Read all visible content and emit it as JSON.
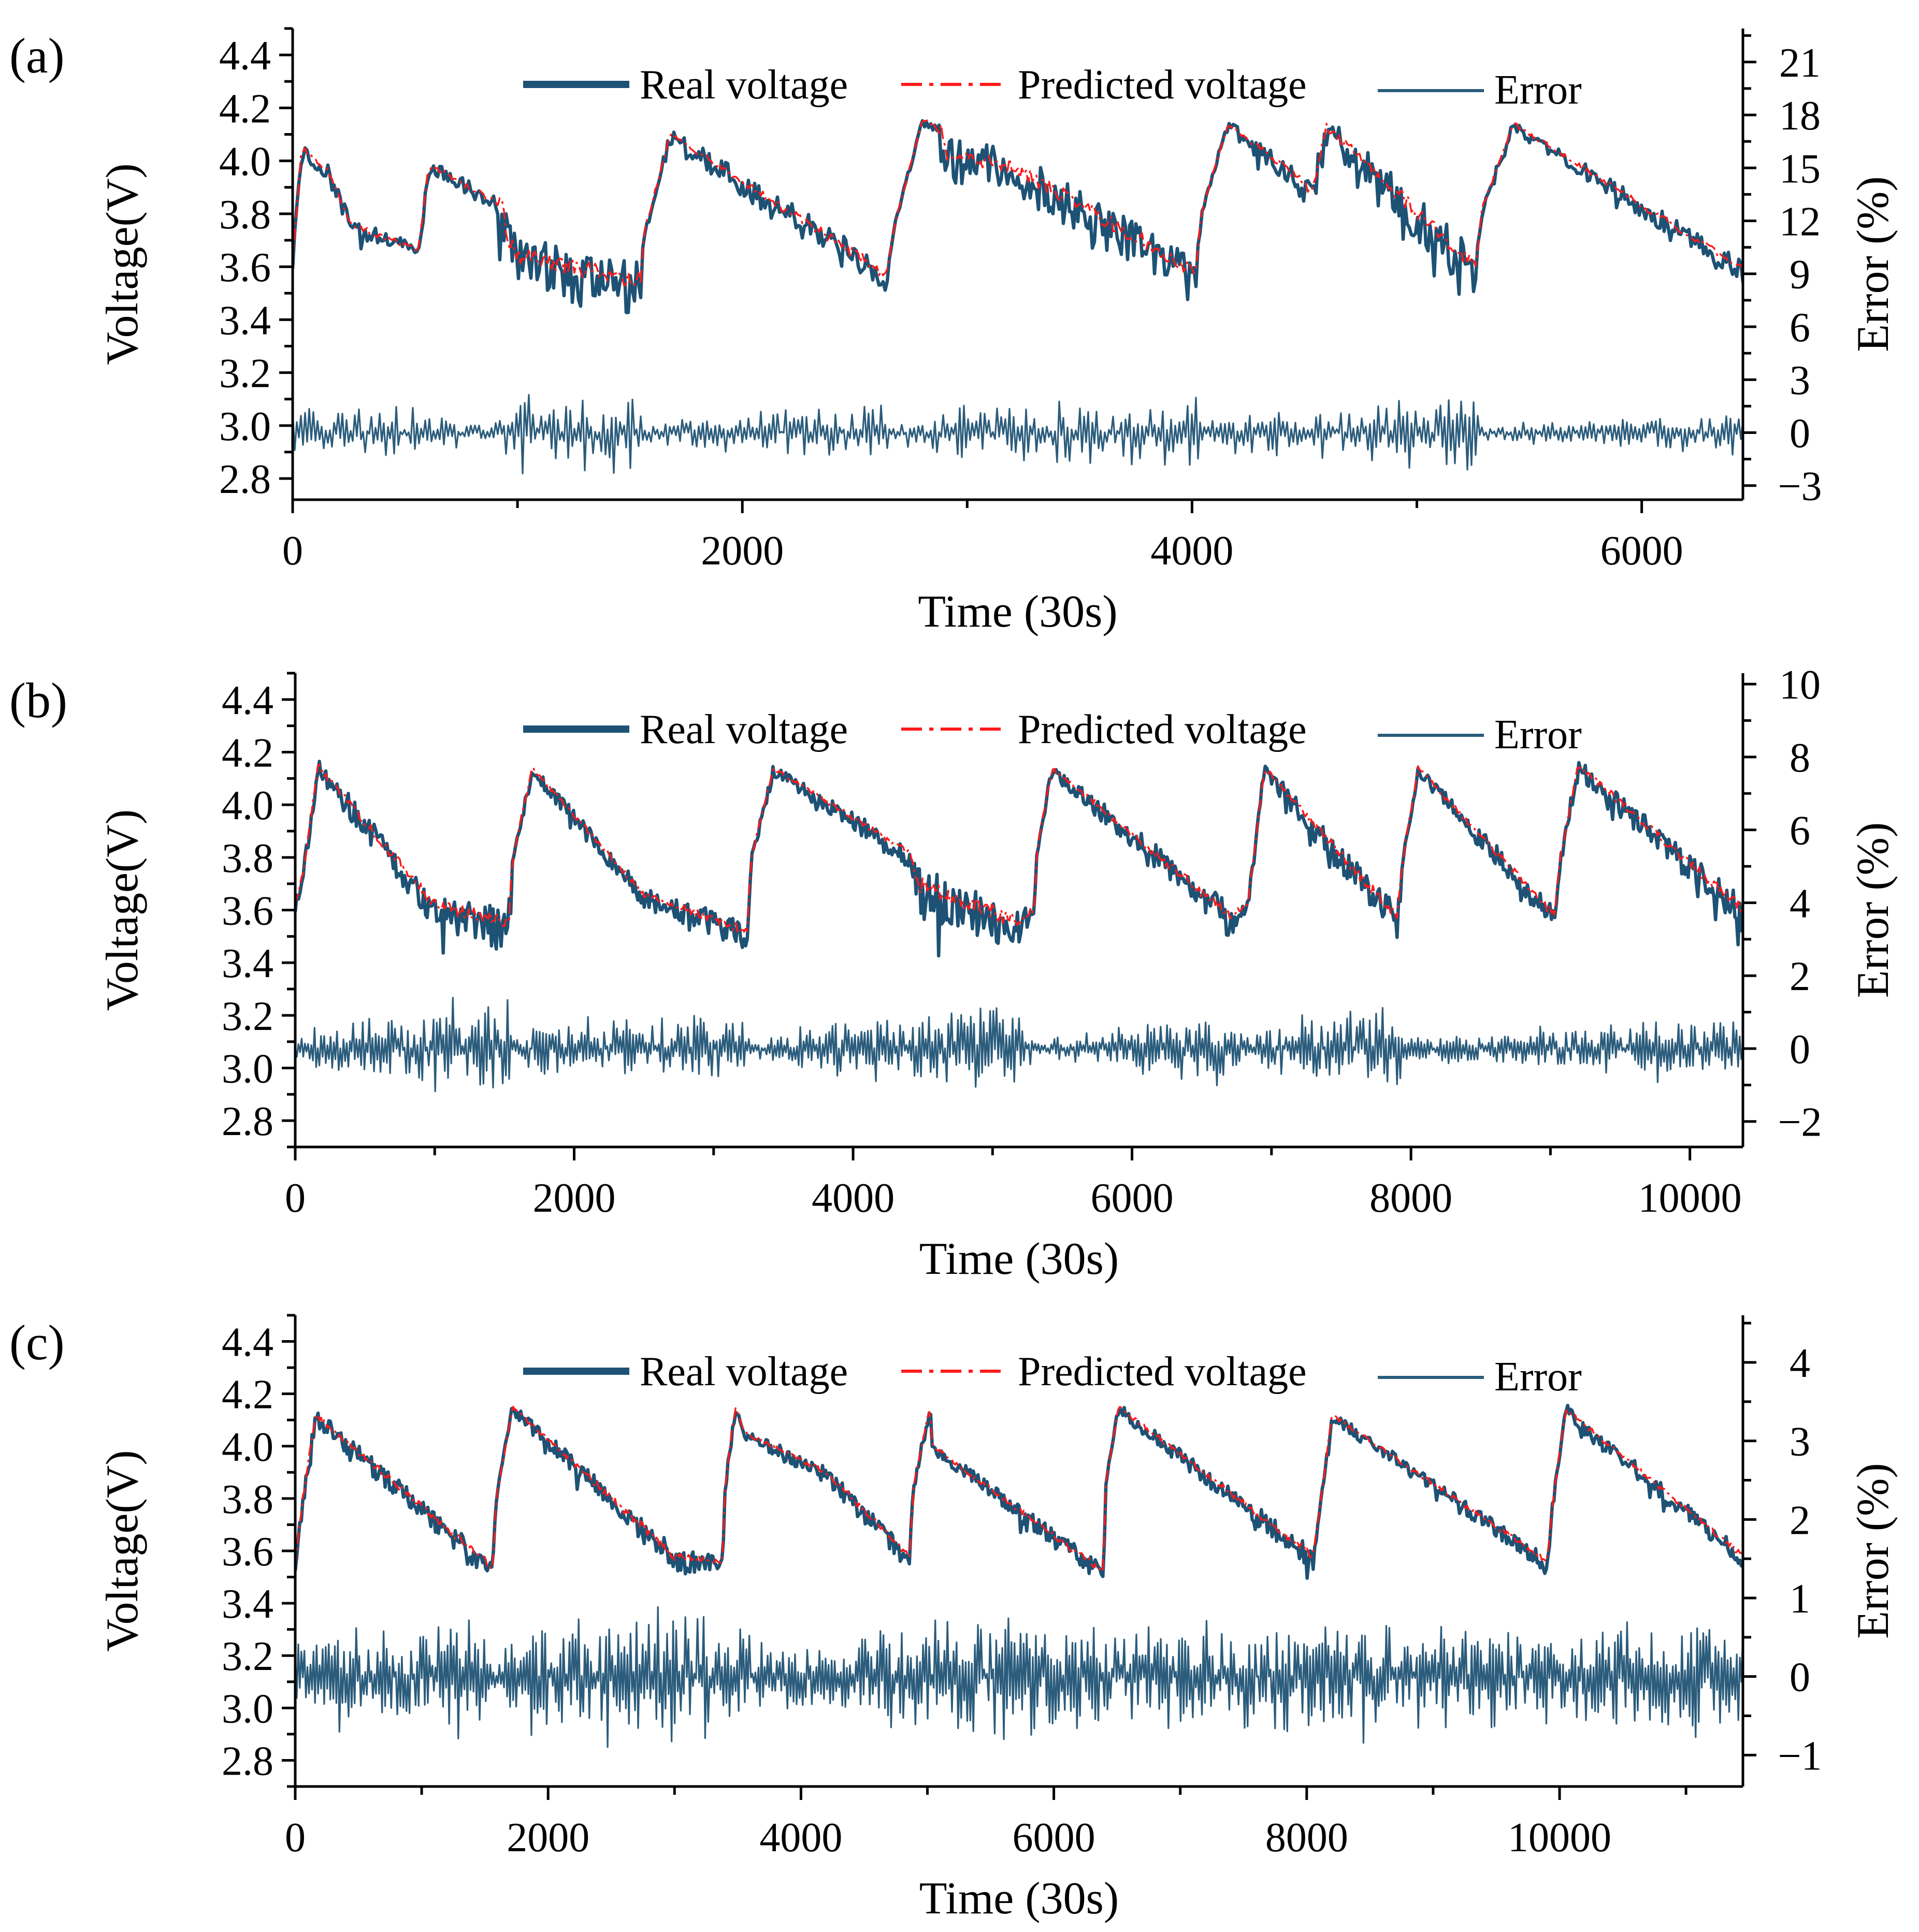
{
  "figure_title": "",
  "colors": {
    "real": "#1d5275",
    "predicted": "#ff1a1a",
    "error": "#2b5c7c",
    "axis": "#000000"
  },
  "chart_data": [
    {
      "type": "line",
      "panel_label": "(a)",
      "xlabel": "Time (30s)",
      "ylabel": "Voltage(V)",
      "y2label": "Error (%)",
      "xlim": [
        0,
        6450
      ],
      "ylim": [
        2.72,
        4.5
      ],
      "y2lim": [
        -3.8,
        22.9
      ],
      "xticks": [
        0,
        2000,
        4000,
        6000
      ],
      "xtick_labels": [
        "0",
        "2000",
        "4000",
        "6000"
      ],
      "yticks": [
        2.8,
        3.0,
        3.2,
        3.4,
        3.6,
        3.8,
        4.0,
        4.2,
        4.4
      ],
      "ytick_labels": [
        "2.8",
        "3.0",
        "3.2",
        "3.4",
        "3.6",
        "3.8",
        "4.0",
        "4.2",
        "4.4"
      ],
      "y2ticks": [
        -3,
        0,
        3,
        6,
        9,
        12,
        15,
        18,
        21
      ],
      "y2tick_labels": [
        "−3",
        "0",
        "3",
        "6",
        "9",
        "12",
        "15",
        "18",
        "21"
      ],
      "legend": [
        "Real voltage",
        "Predicted voltage",
        "Error"
      ],
      "legend_position": "top-center",
      "profile": [
        [
          0,
          3.62
        ],
        [
          40,
          4.05
        ],
        [
          160,
          3.96
        ],
        [
          260,
          3.76
        ],
        [
          560,
          3.66
        ],
        [
          600,
          3.95
        ],
        [
          620,
          3.98
        ],
        [
          930,
          3.83
        ],
        [
          960,
          3.7
        ],
        [
          1000,
          3.64
        ],
        [
          1550,
          3.55
        ],
        [
          1560,
          3.72
        ],
        [
          1680,
          4.1
        ],
        [
          2640,
          3.57
        ],
        [
          2680,
          3.77
        ],
        [
          2800,
          4.15
        ],
        [
          2880,
          4.13
        ],
        [
          2900,
          4.03
        ],
        [
          3200,
          3.98
        ],
        [
          4020,
          3.58
        ],
        [
          4040,
          3.8
        ],
        [
          4160,
          4.14
        ],
        [
          4480,
          3.93
        ],
        [
          4510,
          3.9
        ],
        [
          4530,
          3.87
        ],
        [
          4600,
          4.13
        ],
        [
          5260,
          3.6
        ],
        [
          5290,
          3.82
        ],
        [
          5430,
          4.14
        ],
        [
          6450,
          3.59
        ]
      ],
      "noise_segments": [
        [
          0,
          0.03
        ],
        [
          900,
          0.03
        ],
        [
          930,
          0.09
        ],
        [
          1550,
          0.1
        ],
        [
          1560,
          0.02
        ],
        [
          1900,
          0.04
        ],
        [
          2640,
          0.06
        ],
        [
          2660,
          0.01
        ],
        [
          2800,
          0.01
        ],
        [
          2880,
          0.08
        ],
        [
          4020,
          0.08
        ],
        [
          4040,
          0.01
        ],
        [
          4500,
          0.05
        ],
        [
          5260,
          0.09
        ],
        [
          5280,
          0.02
        ],
        [
          6450,
          0.04
        ]
      ],
      "error_envelope": [
        [
          0,
          1.6
        ],
        [
          500,
          1.4
        ],
        [
          900,
          0.6
        ],
        [
          950,
          2.2
        ],
        [
          1550,
          2.4
        ],
        [
          1560,
          0.6
        ],
        [
          1900,
          1.2
        ],
        [
          2640,
          1.5
        ],
        [
          2660,
          0.3
        ],
        [
          2880,
          1.8
        ],
        [
          4020,
          2.0
        ],
        [
          4040,
          0.4
        ],
        [
          4160,
          1.2
        ],
        [
          4600,
          1.4
        ],
        [
          5260,
          2.4
        ],
        [
          5280,
          0.5
        ],
        [
          6450,
          1.3
        ]
      ],
      "sample_count": 700,
      "seed": 11
    },
    {
      "type": "line",
      "panel_label": "(b)",
      "xlabel": "Time (30s)",
      "ylabel": "Voltage(V)",
      "y2label": "Error (%)",
      "xlim": [
        0,
        10380
      ],
      "ylim": [
        2.7,
        4.5
      ],
      "y2lim": [
        -2.7,
        10.3
      ],
      "xticks": [
        0,
        2000,
        4000,
        6000,
        8000,
        10000
      ],
      "xtick_labels": [
        "0",
        "2000",
        "4000",
        "6000",
        "8000",
        "10000"
      ],
      "yticks": [
        2.8,
        3.0,
        3.2,
        3.4,
        3.6,
        3.8,
        4.0,
        4.2,
        4.4
      ],
      "ytick_labels": [
        "2.8",
        "3.0",
        "3.2",
        "3.4",
        "3.6",
        "3.8",
        "4.0",
        "4.2",
        "4.4"
      ],
      "y2ticks": [
        -2,
        0,
        2,
        4,
        6,
        8,
        10
      ],
      "y2tick_labels": [
        "−2",
        "0",
        "2",
        "4",
        "6",
        "8",
        "10"
      ],
      "legend": [
        "Real voltage",
        "Predicted voltage",
        "Error"
      ],
      "legend_position": "top-center",
      "profile": [
        [
          0,
          3.62
        ],
        [
          60,
          3.75
        ],
        [
          160,
          4.15
        ],
        [
          1000,
          3.62
        ],
        [
          1530,
          3.55
        ],
        [
          1560,
          3.8
        ],
        [
          1700,
          4.14
        ],
        [
          2500,
          3.66
        ],
        [
          3240,
          3.52
        ],
        [
          3270,
          3.8
        ],
        [
          3430,
          4.14
        ],
        [
          4420,
          3.81
        ],
        [
          4450,
          3.7
        ],
        [
          5160,
          3.56
        ],
        [
          5300,
          3.6
        ],
        [
          5320,
          3.84
        ],
        [
          5430,
          4.14
        ],
        [
          6700,
          3.58
        ],
        [
          6830,
          3.62
        ],
        [
          6950,
          4.14
        ],
        [
          7850,
          3.6
        ],
        [
          7900,
          3.58
        ],
        [
          7950,
          3.82
        ],
        [
          8050,
          4.14
        ],
        [
          9030,
          3.58
        ],
        [
          9070,
          3.8
        ],
        [
          9200,
          4.15
        ],
        [
          10380,
          3.6
        ]
      ],
      "noise_segments": [
        [
          0,
          0.03
        ],
        [
          900,
          0.06
        ],
        [
          1550,
          0.08
        ],
        [
          1560,
          0.02
        ],
        [
          3240,
          0.05
        ],
        [
          3260,
          0.02
        ],
        [
          4400,
          0.04
        ],
        [
          4450,
          0.09
        ],
        [
          5200,
          0.08
        ],
        [
          5300,
          0.02
        ],
        [
          6700,
          0.06
        ],
        [
          6800,
          0.02
        ],
        [
          7900,
          0.07
        ],
        [
          7950,
          0.02
        ],
        [
          9030,
          0.05
        ],
        [
          9070,
          0.03
        ],
        [
          10380,
          0.06
        ]
      ],
      "error_envelope": [
        [
          0,
          0.4
        ],
        [
          900,
          1.2
        ],
        [
          1530,
          1.6
        ],
        [
          1560,
          0.4
        ],
        [
          1800,
          0.8
        ],
        [
          3240,
          1.0
        ],
        [
          3260,
          0.3
        ],
        [
          4420,
          1.2
        ],
        [
          5150,
          1.4
        ],
        [
          5300,
          0.3
        ],
        [
          6000,
          0.7
        ],
        [
          6700,
          1.3
        ],
        [
          6800,
          0.4
        ],
        [
          7000,
          0.8
        ],
        [
          7900,
          1.3
        ],
        [
          7950,
          0.4
        ],
        [
          9050,
          0.7
        ],
        [
          9100,
          0.8
        ],
        [
          10380,
          0.9
        ]
      ],
      "sample_count": 900,
      "seed": 23
    },
    {
      "type": "line",
      "panel_label": "(c)",
      "xlabel": "Time (30s)",
      "ylabel": "Voltage(V)",
      "y2label": "Error (%)",
      "xlim": [
        0,
        11450
      ],
      "ylim": [
        2.7,
        4.5
      ],
      "y2lim": [
        -1.4,
        4.6
      ],
      "xticks": [
        0,
        2000,
        4000,
        6000,
        8000,
        10000
      ],
      "xtick_labels": [
        "0",
        "2000",
        "4000",
        "6000",
        "8000",
        "10000"
      ],
      "yticks": [
        2.8,
        3.0,
        3.2,
        3.4,
        3.6,
        3.8,
        4.0,
        4.2,
        4.4
      ],
      "ytick_labels": [
        "2.8",
        "3.0",
        "3.2",
        "3.4",
        "3.6",
        "3.8",
        "4.0",
        "4.2",
        "4.4"
      ],
      "y2ticks": [
        -1,
        0,
        1,
        2,
        3,
        4
      ],
      "y2tick_labels": [
        "−1",
        "0",
        "1",
        "2",
        "3",
        "4"
      ],
      "legend": [
        "Real voltage",
        "Predicted voltage",
        "Error"
      ],
      "legend_position": "top-center",
      "profile": [
        [
          0,
          3.55
        ],
        [
          60,
          3.8
        ],
        [
          160,
          4.12
        ],
        [
          1500,
          3.56
        ],
        [
          1560,
          3.52
        ],
        [
          1590,
          3.8
        ],
        [
          1720,
          4.15
        ],
        [
          3000,
          3.58
        ],
        [
          3380,
          3.56
        ],
        [
          3400,
          3.85
        ],
        [
          3480,
          4.15
        ],
        [
          3560,
          4.05
        ],
        [
          4200,
          3.9
        ],
        [
          4860,
          3.58
        ],
        [
          4890,
          3.85
        ],
        [
          5020,
          4.15
        ],
        [
          5040,
          4.0
        ],
        [
          6390,
          3.52
        ],
        [
          6410,
          3.85
        ],
        [
          6510,
          4.15
        ],
        [
          8050,
          3.58
        ],
        [
          8100,
          3.75
        ],
        [
          8200,
          4.12
        ],
        [
          9900,
          3.56
        ],
        [
          9950,
          3.8
        ],
        [
          10050,
          4.14
        ],
        [
          11450,
          3.58
        ]
      ],
      "noise_segments": [
        [
          0,
          0.03
        ],
        [
          1500,
          0.04
        ],
        [
          1600,
          0.02
        ],
        [
          3000,
          0.05
        ],
        [
          3400,
          0.02
        ],
        [
          4800,
          0.04
        ],
        [
          4900,
          0.02
        ],
        [
          6390,
          0.04
        ],
        [
          6420,
          0.02
        ],
        [
          8050,
          0.04
        ],
        [
          8100,
          0.02
        ],
        [
          9900,
          0.03
        ],
        [
          11450,
          0.03
        ]
      ],
      "error_envelope": [
        [
          0,
          0.6
        ],
        [
          1500,
          0.8
        ],
        [
          1560,
          0.2
        ],
        [
          1800,
          0.8
        ],
        [
          3000,
          1.0
        ],
        [
          3400,
          0.7
        ],
        [
          4000,
          0.5
        ],
        [
          5000,
          0.8
        ],
        [
          6000,
          0.9
        ],
        [
          6500,
          0.7
        ],
        [
          8000,
          0.8
        ],
        [
          9000,
          0.7
        ],
        [
          10000,
          0.7
        ],
        [
          11450,
          0.8
        ]
      ],
      "sample_count": 950,
      "seed": 37
    }
  ]
}
